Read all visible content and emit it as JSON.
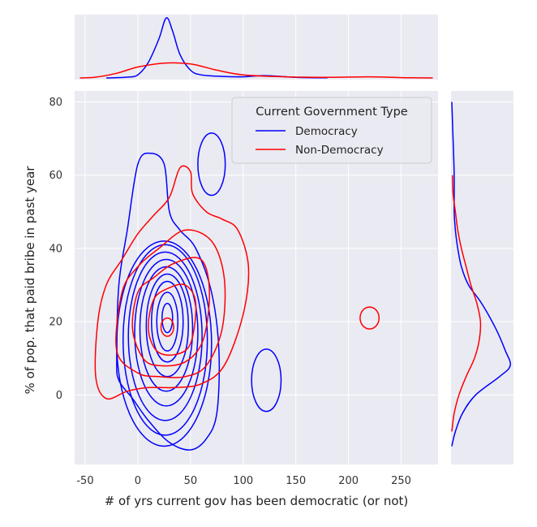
{
  "chart_data": {
    "type": "kde-jointplot",
    "xlabel": "# of yrs current gov has been democratic (or not)",
    "ylabel": "% of pop. that paid bribe in past year",
    "xlim": [
      -60,
      285
    ],
    "ylim": [
      -19,
      83
    ],
    "x_ticks": [
      -50,
      0,
      50,
      100,
      150,
      200,
      250
    ],
    "y_ticks": [
      0,
      20,
      40,
      60,
      80
    ],
    "grid": true,
    "legend": {
      "title": "Current Government Type",
      "placement": "upper-right",
      "entries": [
        {
          "label": "Democracy",
          "color": "#0000ff"
        },
        {
          "label": "Non-Democracy",
          "color": "#ff0000"
        }
      ]
    },
    "series": [
      {
        "key": "democracy",
        "color": "#0000ff",
        "contours": [
          {
            "type": "ellipse",
            "cx": 25,
            "cy": 14,
            "rx": 45,
            "ry": 28
          },
          {
            "type": "ellipse",
            "cx": 26,
            "cy": 15,
            "rx": 40,
            "ry": 26
          },
          {
            "type": "ellipse",
            "cx": 26,
            "cy": 16,
            "rx": 35,
            "ry": 23
          },
          {
            "type": "ellipse",
            "cx": 27,
            "cy": 17,
            "rx": 30,
            "ry": 20
          },
          {
            "type": "ellipse",
            "cx": 27,
            "cy": 18,
            "rx": 25,
            "ry": 17
          },
          {
            "type": "ellipse",
            "cx": 28,
            "cy": 19,
            "rx": 20,
            "ry": 14
          },
          {
            "type": "ellipse",
            "cx": 28,
            "cy": 20,
            "rx": 15,
            "ry": 11
          },
          {
            "type": "ellipse",
            "cx": 28,
            "cy": 20,
            "rx": 10,
            "ry": 8
          },
          {
            "type": "ellipse",
            "cx": 28,
            "cy": 21,
            "rx": 5,
            "ry": 4
          },
          {
            "type": "polygon",
            "points": [
              [
                -20,
                10
              ],
              [
                -18,
                30
              ],
              [
                -10,
                45
              ],
              [
                0,
                63
              ],
              [
                12,
                66
              ],
              [
                25,
                63
              ],
              [
                30,
                50
              ],
              [
                40,
                45
              ],
              [
                55,
                40
              ],
              [
                70,
                28
              ],
              [
                77,
                12
              ],
              [
                75,
                -5
              ],
              [
                65,
                -12
              ],
              [
                50,
                -15
              ],
              [
                30,
                -13
              ],
              [
                10,
                -7
              ],
              [
                -5,
                -1
              ],
              [
                -18,
                4
              ]
            ]
          },
          {
            "type": "ellipse",
            "cx": 70,
            "cy": 63,
            "rx": 13,
            "ry": 8.5
          },
          {
            "type": "ellipse",
            "cx": 122,
            "cy": 4,
            "rx": 14,
            "ry": 8.5
          }
        ],
        "marginal_x": [
          [
            -30,
            0
          ],
          [
            -10,
            1
          ],
          [
            0,
            4
          ],
          [
            10,
            20
          ],
          [
            20,
            50
          ],
          [
            27,
            77
          ],
          [
            33,
            60
          ],
          [
            40,
            30
          ],
          [
            50,
            10
          ],
          [
            60,
            4
          ],
          [
            80,
            2
          ],
          [
            100,
            1.5
          ],
          [
            120,
            3
          ],
          [
            150,
            0.8
          ],
          [
            180,
            0.2
          ]
        ],
        "marginal_y": [
          [
            -14,
            0
          ],
          [
            -10,
            3
          ],
          [
            -5,
            9
          ],
          [
            0,
            20
          ],
          [
            5,
            40
          ],
          [
            8,
            49
          ],
          [
            12,
            45
          ],
          [
            18,
            37
          ],
          [
            25,
            25
          ],
          [
            30,
            14
          ],
          [
            35,
            8
          ],
          [
            40,
            5
          ],
          [
            45,
            3
          ],
          [
            50,
            2
          ],
          [
            60,
            2
          ],
          [
            70,
            1
          ],
          [
            80,
            0
          ]
        ]
      },
      {
        "key": "non_democracy",
        "color": "#ff0000",
        "contours": [
          {
            "type": "polygon",
            "points": [
              [
                -40,
                5
              ],
              [
                -38,
                20
              ],
              [
                -30,
                30
              ],
              [
                -15,
                37
              ],
              [
                0,
                44
              ],
              [
                15,
                49
              ],
              [
                30,
                54
              ],
              [
                40,
                62
              ],
              [
                50,
                61
              ],
              [
                52,
                55
              ],
              [
                65,
                50
              ],
              [
                80,
                48
              ],
              [
                95,
                45
              ],
              [
                105,
                35
              ],
              [
                100,
                22
              ],
              [
                82,
                8
              ],
              [
                60,
                3
              ],
              [
                35,
                2
              ],
              [
                10,
                2
              ],
              [
                -10,
                1
              ],
              [
                -30,
                -1
              ]
            ]
          },
          {
            "type": "polygon",
            "points": [
              [
                -20,
                12
              ],
              [
                -15,
                28
              ],
              [
                0,
                35
              ],
              [
                20,
                40
              ],
              [
                45,
                45
              ],
              [
                70,
                42
              ],
              [
                82,
                32
              ],
              [
                80,
                18
              ],
              [
                65,
                8
              ],
              [
                45,
                5
              ],
              [
                20,
                5
              ],
              [
                0,
                6
              ]
            ]
          },
          {
            "type": "polygon",
            "points": [
              [
                -5,
                18
              ],
              [
                0,
                28
              ],
              [
                15,
                32
              ],
              [
                35,
                36
              ],
              [
                60,
                37
              ],
              [
                68,
                28
              ],
              [
                62,
                15
              ],
              [
                45,
                9
              ],
              [
                20,
                8
              ],
              [
                5,
                10
              ]
            ]
          },
          {
            "type": "polygon",
            "points": [
              [
                10,
                18
              ],
              [
                15,
                26
              ],
              [
                28,
                29
              ],
              [
                45,
                30
              ],
              [
                55,
                25
              ],
              [
                50,
                14
              ],
              [
                35,
                11
              ],
              [
                18,
                12
              ]
            ]
          },
          {
            "type": "ellipse",
            "cx": 28,
            "cy": 18.5,
            "rx": 6,
            "ry": 2.5
          },
          {
            "type": "ellipse",
            "cx": 220,
            "cy": 21,
            "rx": 9,
            "ry": 3
          }
        ],
        "marginal_x": [
          [
            -55,
            0
          ],
          [
            -40,
            1
          ],
          [
            -20,
            6
          ],
          [
            0,
            14
          ],
          [
            25,
            19
          ],
          [
            50,
            18
          ],
          [
            75,
            10
          ],
          [
            100,
            4
          ],
          [
            140,
            1.5
          ],
          [
            180,
            0.8
          ],
          [
            220,
            1.5
          ],
          [
            250,
            0.4
          ],
          [
            280,
            0
          ]
        ],
        "marginal_y": [
          [
            -10,
            0
          ],
          [
            -5,
            2
          ],
          [
            0,
            6
          ],
          [
            5,
            12
          ],
          [
            10,
            19
          ],
          [
            15,
            23
          ],
          [
            20,
            24
          ],
          [
            25,
            21
          ],
          [
            30,
            16
          ],
          [
            35,
            12
          ],
          [
            40,
            8
          ],
          [
            45,
            5
          ],
          [
            50,
            3
          ],
          [
            55,
            1
          ],
          [
            60,
            0.5
          ]
        ]
      }
    ]
  }
}
